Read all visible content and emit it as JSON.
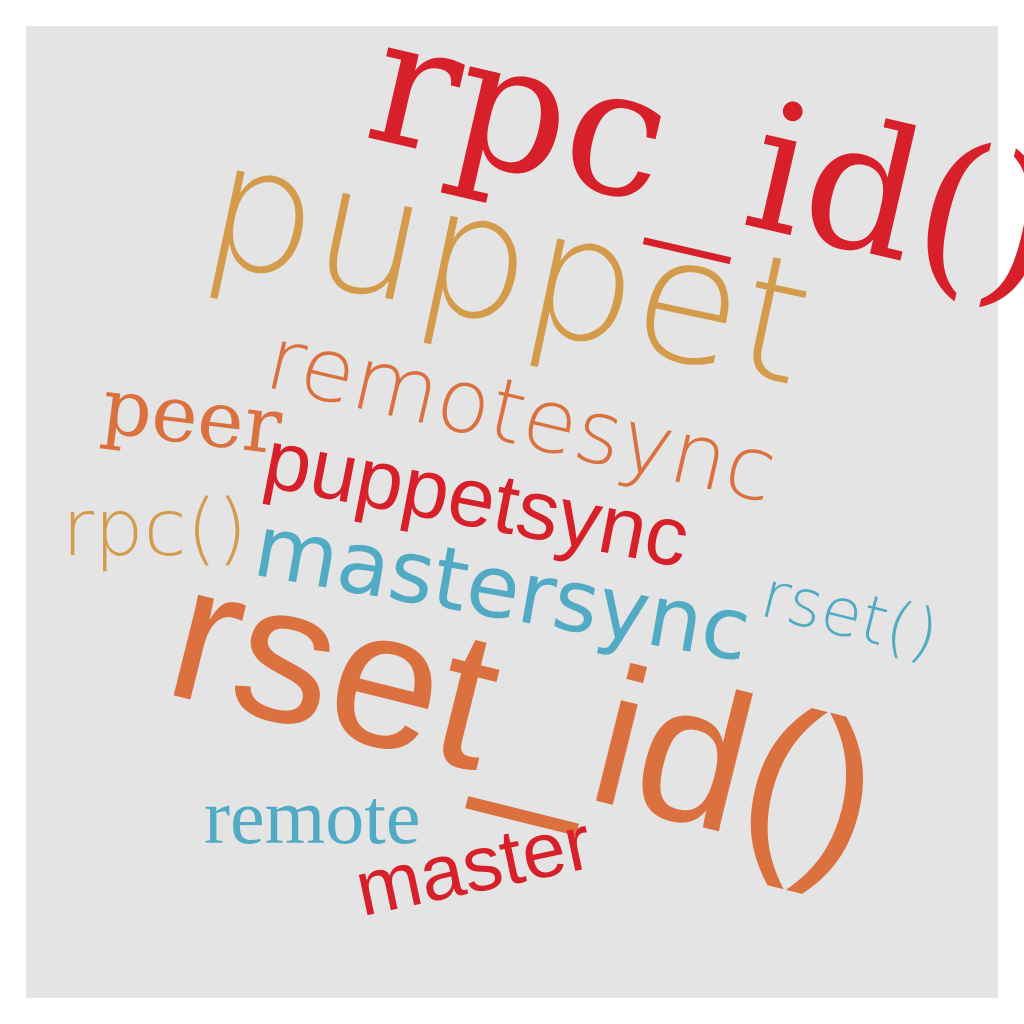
{
  "colors": {
    "red": "#d7202a",
    "gold": "#d39b4a",
    "orange": "#dc7140",
    "teal": "#52abc4",
    "panel": "#e4e4e4"
  },
  "words": {
    "rpc_id": "rpc_id()",
    "puppet": "puppet",
    "remotesync": "remotesync",
    "peer": "peer",
    "puppetsync": "puppetsync",
    "rpc": "rpc()",
    "mastersync": "mastersync",
    "rset": "rset()",
    "rset_id": "rset_id()",
    "remote": "remote",
    "master": "master"
  }
}
